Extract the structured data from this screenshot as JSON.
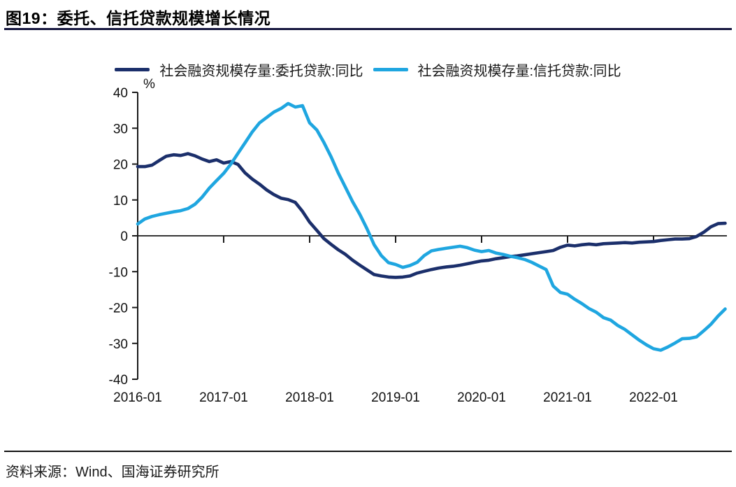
{
  "page": {
    "title": "图19：委托、信托贷款规模增长情况",
    "source": "资料来源：Wind、国海证券研究所"
  },
  "chart_data": {
    "type": "line",
    "title": "图19：委托、信托贷款规模增长情况",
    "unit_label": "%",
    "xlabel": "",
    "ylabel": "%",
    "ylim": [
      -40,
      40
    ],
    "y_ticks": [
      40,
      30,
      20,
      10,
      0,
      -10,
      -20,
      -30,
      -40
    ],
    "x_tick_labels": [
      "2016-01",
      "2017-01",
      "2018-01",
      "2019-01",
      "2020-01",
      "2021-01",
      "2022-01"
    ],
    "x_start": "2016-01",
    "x_end": "2022-11",
    "frequency": "monthly",
    "grid": false,
    "legend_position": "top",
    "series": [
      {
        "name": "社会融资规模存量:委托贷款:同比",
        "color": "#1b2f6b",
        "values": [
          19.3,
          19.3,
          19.7,
          21.0,
          22.2,
          22.6,
          22.4,
          22.9,
          22.3,
          21.4,
          20.7,
          21.2,
          20.3,
          20.7,
          19.9,
          17.5,
          15.8,
          14.4,
          12.8,
          11.5,
          10.5,
          10.1,
          9.3,
          6.8,
          3.8,
          1.5,
          -0.8,
          -2.4,
          -3.9,
          -5.2,
          -6.8,
          -8.2,
          -9.5,
          -10.8,
          -11.2,
          -11.5,
          -11.6,
          -11.5,
          -11.2,
          -10.4,
          -9.9,
          -9.4,
          -9.0,
          -8.7,
          -8.5,
          -8.2,
          -7.8,
          -7.4,
          -7.0,
          -6.8,
          -6.4,
          -6.1,
          -5.8,
          -5.6,
          -5.3,
          -5.0,
          -4.7,
          -4.4,
          -4.1,
          -3.2,
          -2.6,
          -2.8,
          -2.5,
          -2.3,
          -2.5,
          -2.2,
          -2.1,
          -2.0,
          -1.9,
          -2.0,
          -1.8,
          -1.7,
          -1.6,
          -1.3,
          -1.1,
          -0.9,
          -0.9,
          -0.8,
          -0.2,
          1.0,
          2.5,
          3.4,
          3.5
        ]
      },
      {
        "name": "社会融资规模存量:信托贷款:同比",
        "color": "#1fa6e0",
        "values": [
          3.3,
          4.7,
          5.4,
          5.9,
          6.3,
          6.7,
          7.0,
          7.6,
          8.8,
          10.8,
          13.3,
          15.4,
          17.4,
          20.0,
          23.0,
          26.0,
          29.0,
          31.5,
          33.0,
          34.5,
          35.5,
          36.9,
          35.9,
          36.3,
          31.5,
          29.5,
          26.0,
          22.0,
          17.5,
          13.5,
          9.5,
          6.0,
          2.0,
          -2.5,
          -5.5,
          -7.5,
          -8.0,
          -8.8,
          -8.3,
          -7.4,
          -5.5,
          -4.2,
          -3.8,
          -3.5,
          -3.2,
          -2.9,
          -3.3,
          -4.0,
          -4.4,
          -4.1,
          -4.8,
          -5.2,
          -5.7,
          -6.1,
          -6.6,
          -7.4,
          -8.4,
          -9.4,
          -14.0,
          -15.8,
          -16.3,
          -17.7,
          -18.9,
          -20.3,
          -21.3,
          -22.8,
          -23.5,
          -25.0,
          -26.1,
          -27.6,
          -29.1,
          -30.4,
          -31.5,
          -31.9,
          -31.0,
          -29.9,
          -28.7,
          -28.6,
          -28.2,
          -26.5,
          -24.7,
          -22.4,
          -20.4
        ]
      }
    ],
    "axis_color": "#1a1a1a"
  }
}
